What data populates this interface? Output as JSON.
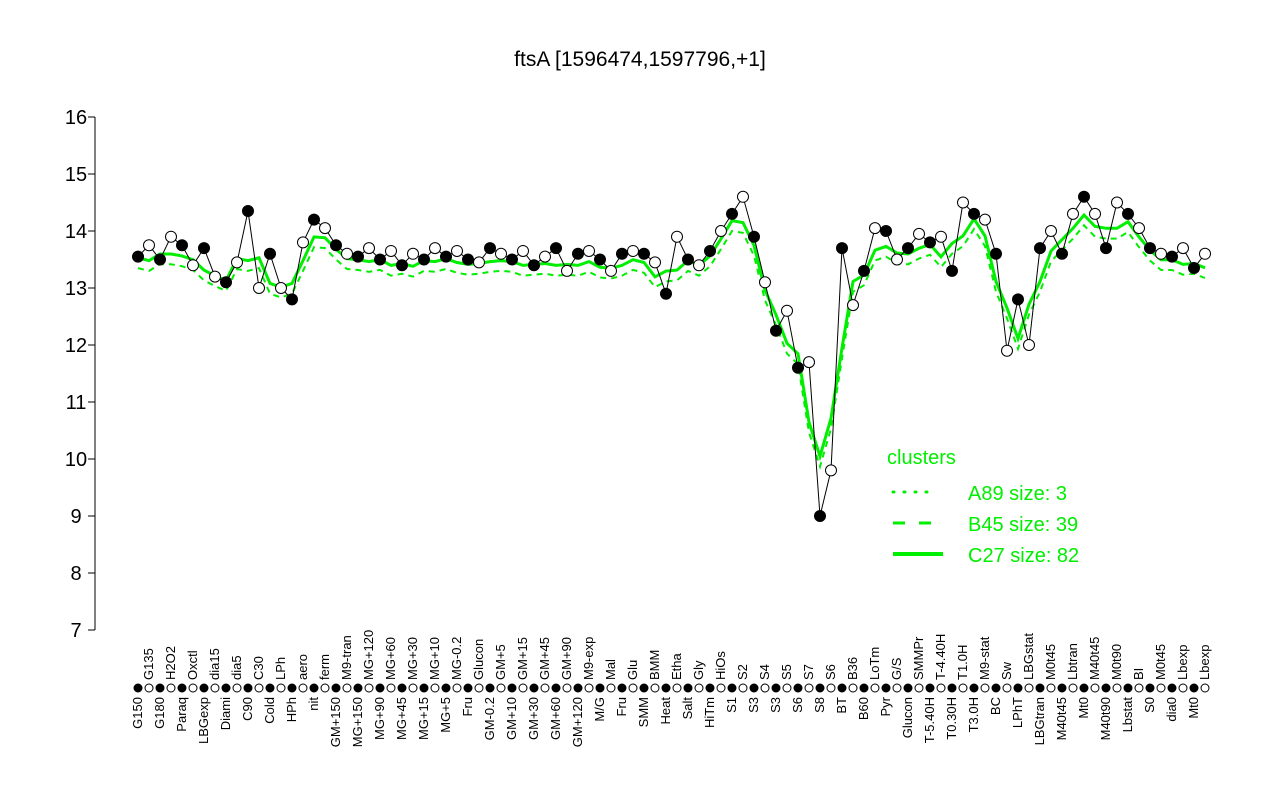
{
  "chart_data": {
    "type": "scatter",
    "title": "ftsA [1596474,1597796,+1]",
    "xlabel": "",
    "ylabel": "",
    "ylim": [
      7,
      16
    ],
    "yticks": [
      "7",
      "8",
      "9",
      "10",
      "11",
      "12",
      "13",
      "14",
      "15",
      "16"
    ],
    "grid": false,
    "legend": {
      "title": "clusters",
      "placement": "right",
      "entries": [
        {
          "label": "A89 size: 3",
          "style": "dotted"
        },
        {
          "label": "B45 size: 39",
          "style": "dashed"
        },
        {
          "label": "C27 size: 82",
          "style": "solid"
        }
      ]
    },
    "colors": {
      "cluster": "#00ee00",
      "points": "#000000"
    },
    "points": [
      [
        "G150",
        13.55,
        1
      ],
      [
        "G135",
        13.75,
        0
      ],
      [
        "G180",
        13.5,
        1
      ],
      [
        "H2O2",
        13.9,
        0
      ],
      [
        "Paraq",
        13.75,
        1
      ],
      [
        "Oxctl",
        13.4,
        0
      ],
      [
        "LBGexp",
        13.7,
        1
      ],
      [
        "dia15",
        13.2,
        0
      ],
      [
        "Diami",
        13.1,
        1
      ],
      [
        "dia5",
        13.45,
        0
      ],
      [
        "C90",
        14.35,
        1
      ],
      [
        "C30",
        13.0,
        0
      ],
      [
        "Cold",
        13.6,
        1
      ],
      [
        "LPh",
        13.0,
        0
      ],
      [
        "HPh",
        12.8,
        1
      ],
      [
        "aero",
        13.8,
        0
      ],
      [
        "nit",
        14.2,
        1
      ],
      [
        "ferm",
        14.05,
        0
      ],
      [
        "GM+150",
        13.75,
        1
      ],
      [
        "M9-tran",
        13.6,
        0
      ],
      [
        "MG+150",
        13.55,
        1
      ],
      [
        "MG+120",
        13.7,
        0
      ],
      [
        "MG+90",
        13.5,
        1
      ],
      [
        "MG+60",
        13.65,
        0
      ],
      [
        "MG+45",
        13.4,
        1
      ],
      [
        "MG+30",
        13.6,
        0
      ],
      [
        "MG+15",
        13.5,
        1
      ],
      [
        "MG+10",
        13.7,
        0
      ],
      [
        "MG+5",
        13.55,
        1
      ],
      [
        "MG-0.2",
        13.65,
        0
      ],
      [
        "Fru",
        13.5,
        1
      ],
      [
        "Glucon",
        13.45,
        0
      ],
      [
        "GM-0.2",
        13.7,
        1
      ],
      [
        "GM+5",
        13.6,
        0
      ],
      [
        "GM+10",
        13.5,
        1
      ],
      [
        "GM+15",
        13.65,
        0
      ],
      [
        "GM+30",
        13.4,
        1
      ],
      [
        "GM+45",
        13.55,
        0
      ],
      [
        "GM+60",
        13.7,
        1
      ],
      [
        "GM+90",
        13.3,
        0
      ],
      [
        "GM+120",
        13.6,
        1
      ],
      [
        "M9-exp",
        13.65,
        0
      ],
      [
        "M/G",
        13.5,
        1
      ],
      [
        "Mal",
        13.3,
        0
      ],
      [
        "Fru",
        13.6,
        1
      ],
      [
        "Glu",
        13.65,
        0
      ],
      [
        "SMM",
        13.6,
        1
      ],
      [
        "BMM",
        13.45,
        0
      ],
      [
        "Heat",
        12.9,
        1
      ],
      [
        "Etha",
        13.9,
        0
      ],
      [
        "Salt",
        13.5,
        1
      ],
      [
        "Gly",
        13.4,
        0
      ],
      [
        "HiTm",
        13.65,
        1
      ],
      [
        "HiOs",
        14.0,
        0
      ],
      [
        "S1",
        14.3,
        1
      ],
      [
        "S2",
        14.6,
        0
      ],
      [
        "S3",
        13.9,
        1
      ],
      [
        "S4",
        13.1,
        0
      ],
      [
        "S3",
        12.25,
        1
      ],
      [
        "S5",
        12.6,
        0
      ],
      [
        "S6",
        11.6,
        1
      ],
      [
        "S7",
        11.7,
        0
      ],
      [
        "S8",
        9.0,
        1
      ],
      [
        "S6",
        9.8,
        0
      ],
      [
        "BT",
        13.7,
        1
      ],
      [
        "B36",
        12.7,
        0
      ],
      [
        "B60",
        13.3,
        1
      ],
      [
        "LoTm",
        14.05,
        0
      ],
      [
        "Pyr",
        14.0,
        1
      ],
      [
        "G/S",
        13.5,
        0
      ],
      [
        "Glucon",
        13.7,
        1
      ],
      [
        "SMMPr",
        13.95,
        0
      ],
      [
        "T-5.40H",
        13.8,
        1
      ],
      [
        "T-4.40H",
        13.9,
        0
      ],
      [
        "T0.30H",
        13.3,
        1
      ],
      [
        "T1.0H",
        14.5,
        0
      ],
      [
        "T3.0H",
        14.3,
        1
      ],
      [
        "M9-stat",
        14.2,
        0
      ],
      [
        "BC",
        13.6,
        1
      ],
      [
        "Sw",
        11.9,
        0
      ],
      [
        "LPhT",
        12.8,
        1
      ],
      [
        "LBGstat",
        12.0,
        0
      ],
      [
        "LBGtran",
        13.7,
        1
      ],
      [
        "M0t45",
        14.0,
        0
      ],
      [
        "M40t45",
        13.6,
        1
      ],
      [
        "Lbtran",
        14.3,
        0
      ],
      [
        "Mt0",
        14.6,
        1
      ],
      [
        "M40t45",
        14.3,
        0
      ],
      [
        "M40t90",
        13.7,
        1
      ],
      [
        "M0t90",
        14.5,
        0
      ],
      [
        "Lbstat",
        14.3,
        1
      ],
      [
        "BI",
        14.05,
        0
      ],
      [
        "S0",
        13.7,
        1
      ],
      [
        "M0t45",
        13.6,
        0
      ],
      [
        "dia0",
        13.55,
        1
      ],
      [
        "Lbexp",
        13.7,
        0
      ],
      [
        "Mt0",
        13.35,
        1
      ],
      [
        "Lbexp",
        13.6,
        0
      ]
    ]
  }
}
